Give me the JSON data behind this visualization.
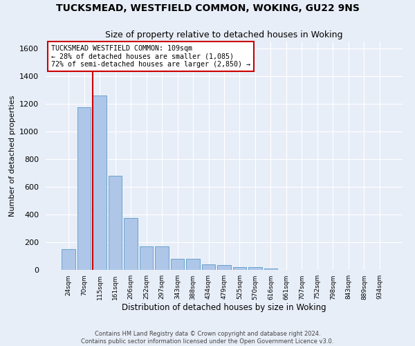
{
  "title": "TUCKSMEAD, WESTFIELD COMMON, WOKING, GU22 9NS",
  "subtitle": "Size of property relative to detached houses in Woking",
  "xlabel": "Distribution of detached houses by size in Woking",
  "ylabel": "Number of detached properties",
  "footer_line1": "Contains HM Land Registry data © Crown copyright and database right 2024.",
  "footer_line2": "Contains public sector information licensed under the Open Government Licence v3.0.",
  "bar_labels": [
    "24sqm",
    "70sqm",
    "115sqm",
    "161sqm",
    "206sqm",
    "252sqm",
    "297sqm",
    "343sqm",
    "388sqm",
    "434sqm",
    "479sqm",
    "525sqm",
    "570sqm",
    "616sqm",
    "661sqm",
    "707sqm",
    "752sqm",
    "798sqm",
    "843sqm",
    "889sqm",
    "934sqm"
  ],
  "bar_values": [
    150,
    1175,
    1260,
    680,
    375,
    170,
    170,
    80,
    80,
    40,
    35,
    22,
    22,
    10,
    0,
    0,
    0,
    0,
    0,
    0,
    0
  ],
  "bar_color": "#aec6e8",
  "bar_edge_color": "#5a9ac8",
  "bg_color": "#e8eef8",
  "grid_color": "#ffffff",
  "vline_x": 1.575,
  "vline_color": "#cc0000",
  "annotation_text": "TUCKSMEAD WESTFIELD COMMON: 109sqm\n← 28% of detached houses are smaller (1,085)\n72% of semi-detached houses are larger (2,850) →",
  "annotation_box_color": "#ffffff",
  "annotation_box_edge": "#cc0000",
  "ylim": [
    0,
    1650
  ],
  "yticks": [
    0,
    200,
    400,
    600,
    800,
    1000,
    1200,
    1400,
    1600
  ]
}
